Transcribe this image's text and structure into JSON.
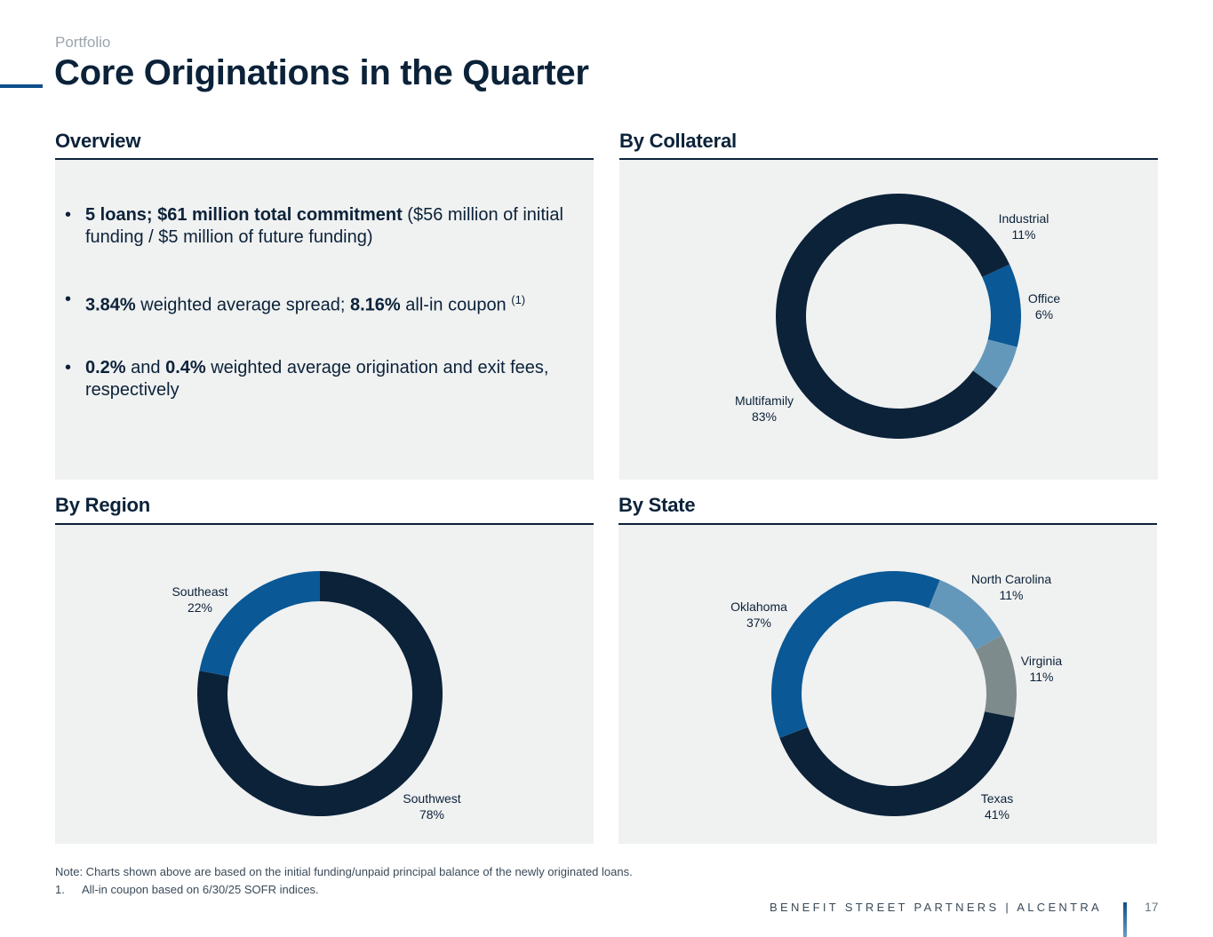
{
  "header": {
    "breadcrumb": "Portfolio",
    "title": "Core Originations in the Quarter"
  },
  "overview": {
    "heading": "Overview",
    "bullets": [
      {
        "bold": "5 loans; $61 million total commitment",
        "text": " ($56 million of initial funding / $5 million of future funding)"
      },
      {
        "bold1": "3.84%",
        "text1": " weighted average spread; ",
        "bold2": "8.16%",
        "text2": " all-in coupon ",
        "sup": "(1)"
      },
      {
        "bold1": "0.2%",
        "text1": " and ",
        "bold2": "0.4%",
        "text2": " weighted average origination and exit fees, respectively"
      }
    ]
  },
  "colors": {
    "navy": "#0b2239",
    "blue": "#0a5896",
    "light_blue": "#6498bb",
    "gray": "#7e8b8d",
    "panel": "#f0f1f1"
  },
  "chart_data": [
    {
      "type": "pie",
      "donut": true,
      "title": "By Collateral",
      "slices": [
        {
          "label": "Industrial",
          "pct": "11%",
          "value": 11,
          "color": "#0a5896"
        },
        {
          "label": "Office",
          "pct": "6%",
          "value": 6,
          "color": "#6498bb"
        },
        {
          "label": "Multifamily",
          "pct": "83%",
          "value": 83,
          "color": "#0b2239"
        }
      ]
    },
    {
      "type": "pie",
      "donut": true,
      "title": "By Region",
      "slices": [
        {
          "label": "Southwest",
          "pct": "78%",
          "value": 78,
          "color": "#0b2239"
        },
        {
          "label": "Southeast",
          "pct": "22%",
          "value": 22,
          "color": "#0a5896"
        }
      ]
    },
    {
      "type": "pie",
      "donut": true,
      "title": "By State",
      "slices": [
        {
          "label": "North Carolina",
          "pct": "11%",
          "value": 11,
          "color": "#6498bb"
        },
        {
          "label": "Virginia",
          "pct": "11%",
          "value": 11,
          "color": "#7e8b8d"
        },
        {
          "label": "Texas",
          "pct": "41%",
          "value": 41,
          "color": "#0b2239"
        },
        {
          "label": "Oklahoma",
          "pct": "37%",
          "value": 37,
          "color": "#0a5896"
        }
      ]
    }
  ],
  "notes": {
    "note": "Note: Charts shown above are based on the initial funding/unpaid principal balance of the newly originated loans.",
    "footnote_num": "1.",
    "footnote": "All-in coupon based on 6/30/25 SOFR indices."
  },
  "footer": {
    "brand": "BENEFIT STREET PARTNERS | ALCENTRA",
    "page_number": "17"
  }
}
